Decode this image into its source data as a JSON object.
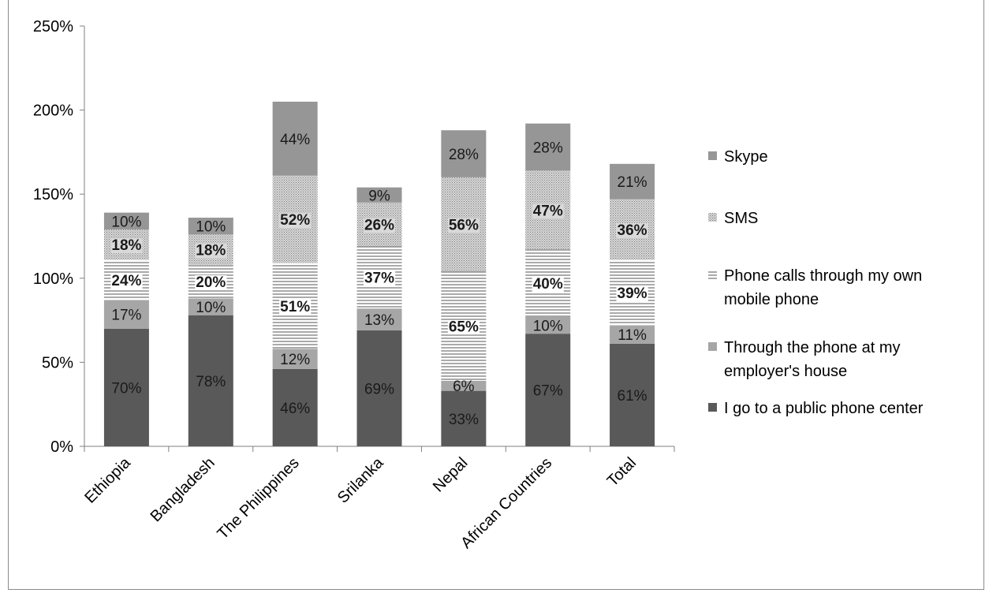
{
  "chart_data": {
    "type": "bar",
    "stacked": true,
    "title": "",
    "xlabel": "",
    "ylabel": "",
    "ylim": [
      0,
      250
    ],
    "yticks": [
      "0%",
      "50%",
      "100%",
      "150%",
      "200%",
      "250%"
    ],
    "ytick_values": [
      0,
      50,
      100,
      150,
      200,
      250
    ],
    "grid": false,
    "legend_position": "right",
    "categories": [
      "Ethiopia",
      "Bangladesh",
      "The Philippines",
      "Srilanka",
      "Nepal",
      "African Countries",
      "Total"
    ],
    "series": [
      {
        "name": "I go to a public phone center",
        "color": "#595959",
        "pattern": "solid",
        "values": [
          70,
          78,
          46,
          69,
          33,
          67,
          61
        ],
        "labels": [
          "70%",
          "78%",
          "46%",
          "69%",
          "33%",
          "67%",
          "61%"
        ],
        "bold": false
      },
      {
        "name": "Through the phone at my employer's house",
        "color": "#a6a6a6",
        "pattern": "solid",
        "values": [
          17,
          10,
          12,
          13,
          6,
          10,
          11
        ],
        "labels": [
          "17%",
          "10%",
          "12%",
          "13%",
          "6%",
          "10%",
          "11%"
        ],
        "bold": false
      },
      {
        "name": "Phone calls through my own mobile phone",
        "color": "#595959",
        "pattern": "horizontal-lines",
        "values": [
          24,
          20,
          51,
          37,
          65,
          40,
          39
        ],
        "labels": [
          "24%",
          "20%",
          "51%",
          "37%",
          "65%",
          "40%",
          "39%"
        ],
        "bold": true
      },
      {
        "name": "SMS",
        "color": "#7f7f7f",
        "pattern": "dots",
        "values": [
          18,
          18,
          52,
          26,
          56,
          47,
          36
        ],
        "labels": [
          "18%",
          "18%",
          "52%",
          "26%",
          "56%",
          "47%",
          "36%"
        ],
        "bold": true
      },
      {
        "name": "Skype",
        "color": "#969696",
        "pattern": "solid",
        "values": [
          10,
          10,
          44,
          9,
          28,
          28,
          21
        ],
        "labels": [
          "10%",
          "10%",
          "44%",
          "9%",
          "28%",
          "28%",
          "21%"
        ],
        "bold": false
      }
    ],
    "legend_lines": [
      [
        "Skype"
      ],
      [
        "SMS"
      ],
      [
        "Phone calls through my own",
        "mobile phone"
      ],
      [
        "Through the phone at my",
        "employer's house"
      ],
      [
        "I go to a public phone center"
      ]
    ]
  }
}
